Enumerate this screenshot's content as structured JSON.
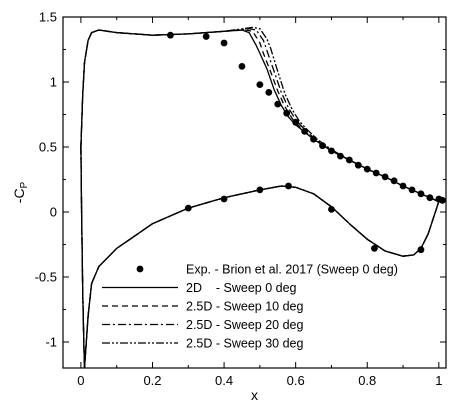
{
  "chart_data": {
    "type": "line",
    "title": "",
    "xlabel": "x",
    "ylabel_main": "-C",
    "ylabel_sub": "P",
    "xlim": [
      -0.05,
      1.02
    ],
    "ylim": [
      -1.2,
      1.5
    ],
    "xticks": [
      0,
      0.2,
      0.4,
      0.6,
      0.8,
      1
    ],
    "xtick_labels": [
      "0",
      "0.2",
      "0.4",
      "0.6",
      "0.8",
      "1"
    ],
    "yticks": [
      -1,
      -0.5,
      0,
      0.5,
      1,
      1.5
    ],
    "ytick_labels": [
      "-1",
      "-0.5",
      "0",
      "0.5",
      "1",
      "1.5"
    ],
    "grid": false,
    "legend_position": "lower-right",
    "experiment": {
      "name": "Exp. - Brion et al. 2017 (Sweep 0 deg)",
      "upper": [
        [
          0.25,
          1.36
        ],
        [
          0.35,
          1.35
        ],
        [
          0.4,
          1.3
        ],
        [
          0.45,
          1.12
        ],
        [
          0.5,
          0.98
        ],
        [
          0.525,
          0.92
        ],
        [
          0.55,
          0.83
        ],
        [
          0.575,
          0.76
        ],
        [
          0.6,
          0.69
        ],
        [
          0.625,
          0.62
        ],
        [
          0.65,
          0.56
        ],
        [
          0.675,
          0.51
        ],
        [
          0.7,
          0.47
        ],
        [
          0.725,
          0.43
        ],
        [
          0.75,
          0.4
        ],
        [
          0.775,
          0.36
        ],
        [
          0.8,
          0.33
        ],
        [
          0.825,
          0.3
        ],
        [
          0.85,
          0.27
        ],
        [
          0.875,
          0.24
        ],
        [
          0.9,
          0.2
        ],
        [
          0.925,
          0.17
        ],
        [
          0.95,
          0.14
        ],
        [
          0.975,
          0.11
        ],
        [
          1.0,
          0.1
        ],
        [
          1.01,
          0.09
        ]
      ],
      "lower": [
        [
          0.3,
          0.03
        ],
        [
          0.4,
          0.1
        ],
        [
          0.5,
          0.17
        ],
        [
          0.58,
          0.2
        ],
        [
          0.7,
          0.02
        ],
        [
          0.82,
          -0.28
        ],
        [
          0.95,
          -0.29
        ]
      ]
    },
    "series": [
      {
        "name": "2D    - Sweep 0 deg",
        "dash": "",
        "upper": [
          [
            0,
            0.5
          ],
          [
            0.005,
            0.9
          ],
          [
            0.01,
            1.15
          ],
          [
            0.02,
            1.32
          ],
          [
            0.03,
            1.38
          ],
          [
            0.05,
            1.4
          ],
          [
            0.1,
            1.38
          ],
          [
            0.2,
            1.36
          ],
          [
            0.3,
            1.37
          ],
          [
            0.4,
            1.39
          ],
          [
            0.45,
            1.4
          ],
          [
            0.47,
            1.38
          ],
          [
            0.49,
            1.28
          ],
          [
            0.5,
            1.22
          ],
          [
            0.52,
            1.1
          ],
          [
            0.54,
            0.94
          ],
          [
            0.56,
            0.82
          ],
          [
            0.58,
            0.73
          ],
          [
            0.6,
            0.67
          ],
          [
            0.65,
            0.56
          ],
          [
            0.7,
            0.47
          ],
          [
            0.75,
            0.4
          ],
          [
            0.8,
            0.33
          ],
          [
            0.85,
            0.27
          ],
          [
            0.9,
            0.2
          ],
          [
            0.95,
            0.14
          ],
          [
            1.0,
            0.08
          ]
        ],
        "lower": [
          [
            0,
            0.5
          ],
          [
            0.002,
            0.0
          ],
          [
            0.005,
            -0.6
          ],
          [
            0.008,
            -1.0
          ],
          [
            0.01,
            -1.2
          ],
          [
            0.02,
            -0.8
          ],
          [
            0.03,
            -0.55
          ],
          [
            0.05,
            -0.42
          ],
          [
            0.1,
            -0.28
          ],
          [
            0.2,
            -0.09
          ],
          [
            0.3,
            0.03
          ],
          [
            0.4,
            0.11
          ],
          [
            0.5,
            0.17
          ],
          [
            0.56,
            0.2
          ],
          [
            0.6,
            0.19
          ],
          [
            0.65,
            0.14
          ],
          [
            0.7,
            0.04
          ],
          [
            0.75,
            -0.09
          ],
          [
            0.8,
            -0.21
          ],
          [
            0.85,
            -0.3
          ],
          [
            0.9,
            -0.34
          ],
          [
            0.93,
            -0.33
          ],
          [
            0.95,
            -0.28
          ],
          [
            0.97,
            -0.17
          ],
          [
            1.0,
            0.08
          ]
        ]
      },
      {
        "name": "2.5D - Sweep 10 deg",
        "dash": "6,4",
        "upper": [
          [
            0,
            0.5
          ],
          [
            0.005,
            0.9
          ],
          [
            0.01,
            1.15
          ],
          [
            0.02,
            1.32
          ],
          [
            0.03,
            1.38
          ],
          [
            0.05,
            1.4
          ],
          [
            0.1,
            1.38
          ],
          [
            0.2,
            1.36
          ],
          [
            0.3,
            1.37
          ],
          [
            0.4,
            1.39
          ],
          [
            0.46,
            1.4
          ],
          [
            0.48,
            1.39
          ],
          [
            0.5,
            1.3
          ],
          [
            0.51,
            1.22
          ],
          [
            0.53,
            1.08
          ],
          [
            0.55,
            0.93
          ],
          [
            0.57,
            0.81
          ],
          [
            0.59,
            0.72
          ],
          [
            0.61,
            0.66
          ],
          [
            0.65,
            0.56
          ],
          [
            0.7,
            0.47
          ],
          [
            0.75,
            0.4
          ],
          [
            0.8,
            0.33
          ],
          [
            0.85,
            0.27
          ],
          [
            0.9,
            0.2
          ],
          [
            0.95,
            0.14
          ],
          [
            1.0,
            0.08
          ]
        ],
        "lower": [
          [
            0,
            0.5
          ],
          [
            0.002,
            0.0
          ],
          [
            0.005,
            -0.6
          ],
          [
            0.008,
            -1.0
          ],
          [
            0.01,
            -1.2
          ],
          [
            0.02,
            -0.8
          ],
          [
            0.03,
            -0.55
          ],
          [
            0.05,
            -0.42
          ],
          [
            0.1,
            -0.28
          ],
          [
            0.2,
            -0.09
          ],
          [
            0.3,
            0.03
          ],
          [
            0.4,
            0.11
          ],
          [
            0.5,
            0.17
          ],
          [
            0.56,
            0.2
          ],
          [
            0.6,
            0.19
          ],
          [
            0.65,
            0.14
          ],
          [
            0.7,
            0.04
          ],
          [
            0.75,
            -0.09
          ],
          [
            0.8,
            -0.21
          ],
          [
            0.85,
            -0.3
          ],
          [
            0.9,
            -0.34
          ],
          [
            0.93,
            -0.33
          ],
          [
            0.95,
            -0.28
          ],
          [
            0.97,
            -0.17
          ],
          [
            1.0,
            0.08
          ]
        ]
      },
      {
        "name": "2.5D - Sweep 20 deg",
        "dash": "8,3,2,3",
        "upper": [
          [
            0,
            0.5
          ],
          [
            0.005,
            0.9
          ],
          [
            0.01,
            1.15
          ],
          [
            0.02,
            1.32
          ],
          [
            0.03,
            1.38
          ],
          [
            0.05,
            1.4
          ],
          [
            0.1,
            1.38
          ],
          [
            0.2,
            1.36
          ],
          [
            0.3,
            1.37
          ],
          [
            0.4,
            1.39
          ],
          [
            0.47,
            1.41
          ],
          [
            0.49,
            1.4
          ],
          [
            0.51,
            1.32
          ],
          [
            0.52,
            1.24
          ],
          [
            0.54,
            1.08
          ],
          [
            0.56,
            0.92
          ],
          [
            0.58,
            0.8
          ],
          [
            0.6,
            0.71
          ],
          [
            0.62,
            0.65
          ],
          [
            0.65,
            0.57
          ],
          [
            0.7,
            0.47
          ],
          [
            0.75,
            0.4
          ],
          [
            0.8,
            0.33
          ],
          [
            0.85,
            0.27
          ],
          [
            0.9,
            0.2
          ],
          [
            0.95,
            0.14
          ],
          [
            1.0,
            0.08
          ]
        ],
        "lower": [
          [
            0,
            0.5
          ],
          [
            0.002,
            0.0
          ],
          [
            0.005,
            -0.6
          ],
          [
            0.008,
            -1.0
          ],
          [
            0.01,
            -1.2
          ],
          [
            0.02,
            -0.8
          ],
          [
            0.03,
            -0.55
          ],
          [
            0.05,
            -0.42
          ],
          [
            0.1,
            -0.28
          ],
          [
            0.2,
            -0.09
          ],
          [
            0.3,
            0.03
          ],
          [
            0.4,
            0.11
          ],
          [
            0.5,
            0.17
          ],
          [
            0.56,
            0.2
          ],
          [
            0.6,
            0.19
          ],
          [
            0.65,
            0.14
          ],
          [
            0.7,
            0.04
          ],
          [
            0.75,
            -0.09
          ],
          [
            0.8,
            -0.21
          ],
          [
            0.85,
            -0.3
          ],
          [
            0.9,
            -0.34
          ],
          [
            0.93,
            -0.33
          ],
          [
            0.95,
            -0.28
          ],
          [
            0.97,
            -0.17
          ],
          [
            1.0,
            0.08
          ]
        ]
      },
      {
        "name": "2.5D - Sweep 30 deg",
        "dash": "8,2,2,2,2,2",
        "upper": [
          [
            0,
            0.5
          ],
          [
            0.005,
            0.9
          ],
          [
            0.01,
            1.15
          ],
          [
            0.02,
            1.32
          ],
          [
            0.03,
            1.38
          ],
          [
            0.05,
            1.4
          ],
          [
            0.1,
            1.38
          ],
          [
            0.2,
            1.36
          ],
          [
            0.3,
            1.37
          ],
          [
            0.4,
            1.39
          ],
          [
            0.48,
            1.42
          ],
          [
            0.5,
            1.41
          ],
          [
            0.52,
            1.33
          ],
          [
            0.53,
            1.26
          ],
          [
            0.55,
            1.08
          ],
          [
            0.57,
            0.91
          ],
          [
            0.59,
            0.79
          ],
          [
            0.61,
            0.7
          ],
          [
            0.63,
            0.64
          ],
          [
            0.66,
            0.56
          ],
          [
            0.7,
            0.48
          ],
          [
            0.75,
            0.4
          ],
          [
            0.8,
            0.33
          ],
          [
            0.85,
            0.27
          ],
          [
            0.9,
            0.2
          ],
          [
            0.95,
            0.14
          ],
          [
            1.0,
            0.08
          ]
        ],
        "lower": [
          [
            0,
            0.5
          ],
          [
            0.002,
            0.0
          ],
          [
            0.005,
            -0.6
          ],
          [
            0.008,
            -1.0
          ],
          [
            0.01,
            -1.2
          ],
          [
            0.02,
            -0.8
          ],
          [
            0.03,
            -0.55
          ],
          [
            0.05,
            -0.42
          ],
          [
            0.1,
            -0.28
          ],
          [
            0.2,
            -0.09
          ],
          [
            0.3,
            0.03
          ],
          [
            0.4,
            0.11
          ],
          [
            0.5,
            0.17
          ],
          [
            0.56,
            0.2
          ],
          [
            0.6,
            0.19
          ],
          [
            0.65,
            0.14
          ],
          [
            0.7,
            0.04
          ],
          [
            0.75,
            -0.09
          ],
          [
            0.8,
            -0.21
          ],
          [
            0.85,
            -0.3
          ],
          [
            0.9,
            -0.34
          ],
          [
            0.93,
            -0.33
          ],
          [
            0.95,
            -0.28
          ],
          [
            0.97,
            -0.17
          ],
          [
            1.0,
            0.08
          ]
        ]
      }
    ]
  }
}
